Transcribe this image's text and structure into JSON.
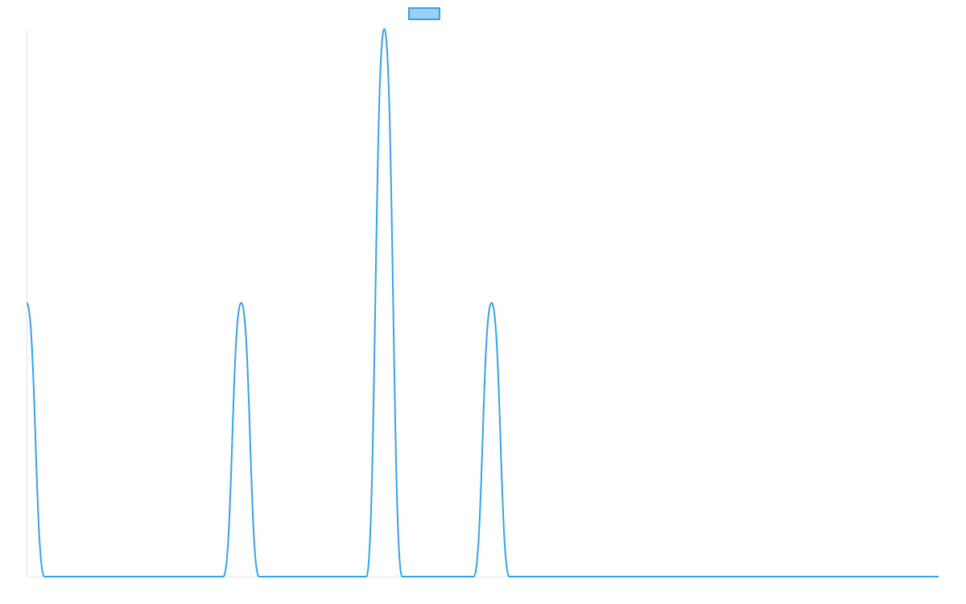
{
  "chart_data": {
    "type": "line",
    "title": "",
    "xlabel": "",
    "ylabel": "",
    "x_range": [
      0,
      51
    ],
    "ylim": [
      0,
      2
    ],
    "grid": false,
    "legend_placement": "top-center",
    "series": [
      {
        "name": "",
        "color": "#36a2eb",
        "fill_color": "#9ad0f5",
        "x": [
          0,
          1,
          11,
          12,
          13,
          19,
          20,
          21,
          25,
          26,
          27,
          51
        ],
        "y": [
          1,
          0,
          0,
          1,
          0,
          0,
          2,
          0,
          0,
          1,
          0,
          0
        ]
      }
    ]
  }
}
